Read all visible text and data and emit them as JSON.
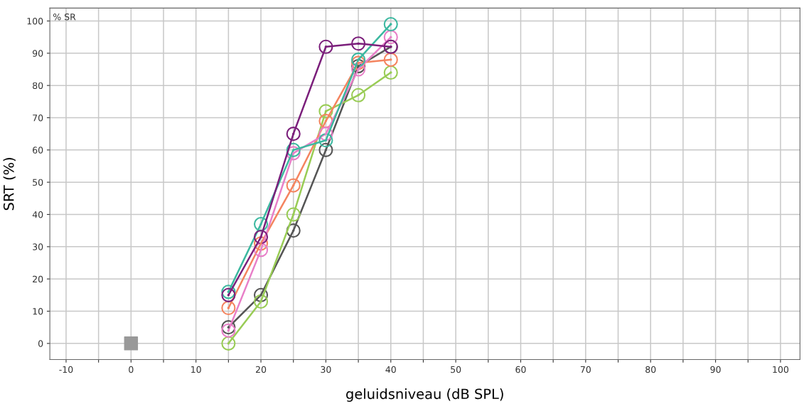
{
  "chart_data": {
    "type": "line",
    "xlabel": "geluidsniveau (dB SPL)",
    "ylabel": "SRT (%)",
    "annotations": [
      "% SR"
    ],
    "marker": "circle",
    "line_style": "solid",
    "grid": true,
    "legend": false,
    "xlim": [
      -12.5,
      103
    ],
    "ylim": [
      -5,
      104
    ],
    "xticks": [
      -10,
      {
        "value": -5,
        "label": null
      },
      0,
      {
        "value": 5,
        "label": null
      },
      10,
      {
        "value": 15,
        "label": null
      },
      20,
      {
        "value": 25,
        "label": null
      },
      30,
      {
        "value": 35,
        "label": null
      },
      40,
      {
        "value": 45,
        "label": null
      },
      50,
      {
        "value": 55,
        "label": null
      },
      60,
      {
        "value": 65,
        "label": null
      },
      70,
      {
        "value": 75,
        "label": null
      },
      80,
      {
        "value": 85,
        "label": null
      },
      90,
      {
        "value": 95,
        "label": null
      },
      100
    ],
    "yticks": [
      0,
      10,
      20,
      30,
      40,
      50,
      60,
      70,
      80,
      90,
      100
    ],
    "series": [
      {
        "color": "#555555",
        "x": [
          15,
          20,
          25,
          30,
          35,
          40
        ],
        "values": [
          5,
          15,
          35,
          60,
          86,
          92
        ]
      },
      {
        "color": "#99cc55",
        "x": [
          15,
          20,
          25,
          30,
          35,
          40
        ],
        "values": [
          0,
          13,
          40,
          72,
          77,
          84
        ]
      },
      {
        "color": "#f4845f",
        "x": [
          15,
          20,
          25,
          30,
          35,
          40
        ],
        "values": [
          11,
          31,
          49,
          69,
          87,
          88
        ]
      },
      {
        "color": "#e87fc8",
        "x": [
          15,
          20,
          25,
          30,
          35,
          40
        ],
        "values": [
          4,
          29,
          59,
          65,
          85,
          95
        ]
      },
      {
        "color": "#3cb8a0",
        "x": [
          15,
          20,
          25,
          30,
          35,
          40
        ],
        "values": [
          16,
          37,
          60,
          63,
          88,
          99
        ]
      },
      {
        "color": "#7b1f7b",
        "x": [
          15,
          20,
          25,
          30,
          35,
          40
        ],
        "values": [
          15,
          33,
          65,
          92,
          93,
          92
        ]
      },
      {
        "type": "scatter",
        "marker": "square",
        "color": "#999999",
        "x": [
          0
        ],
        "values": [
          0
        ]
      }
    ]
  }
}
